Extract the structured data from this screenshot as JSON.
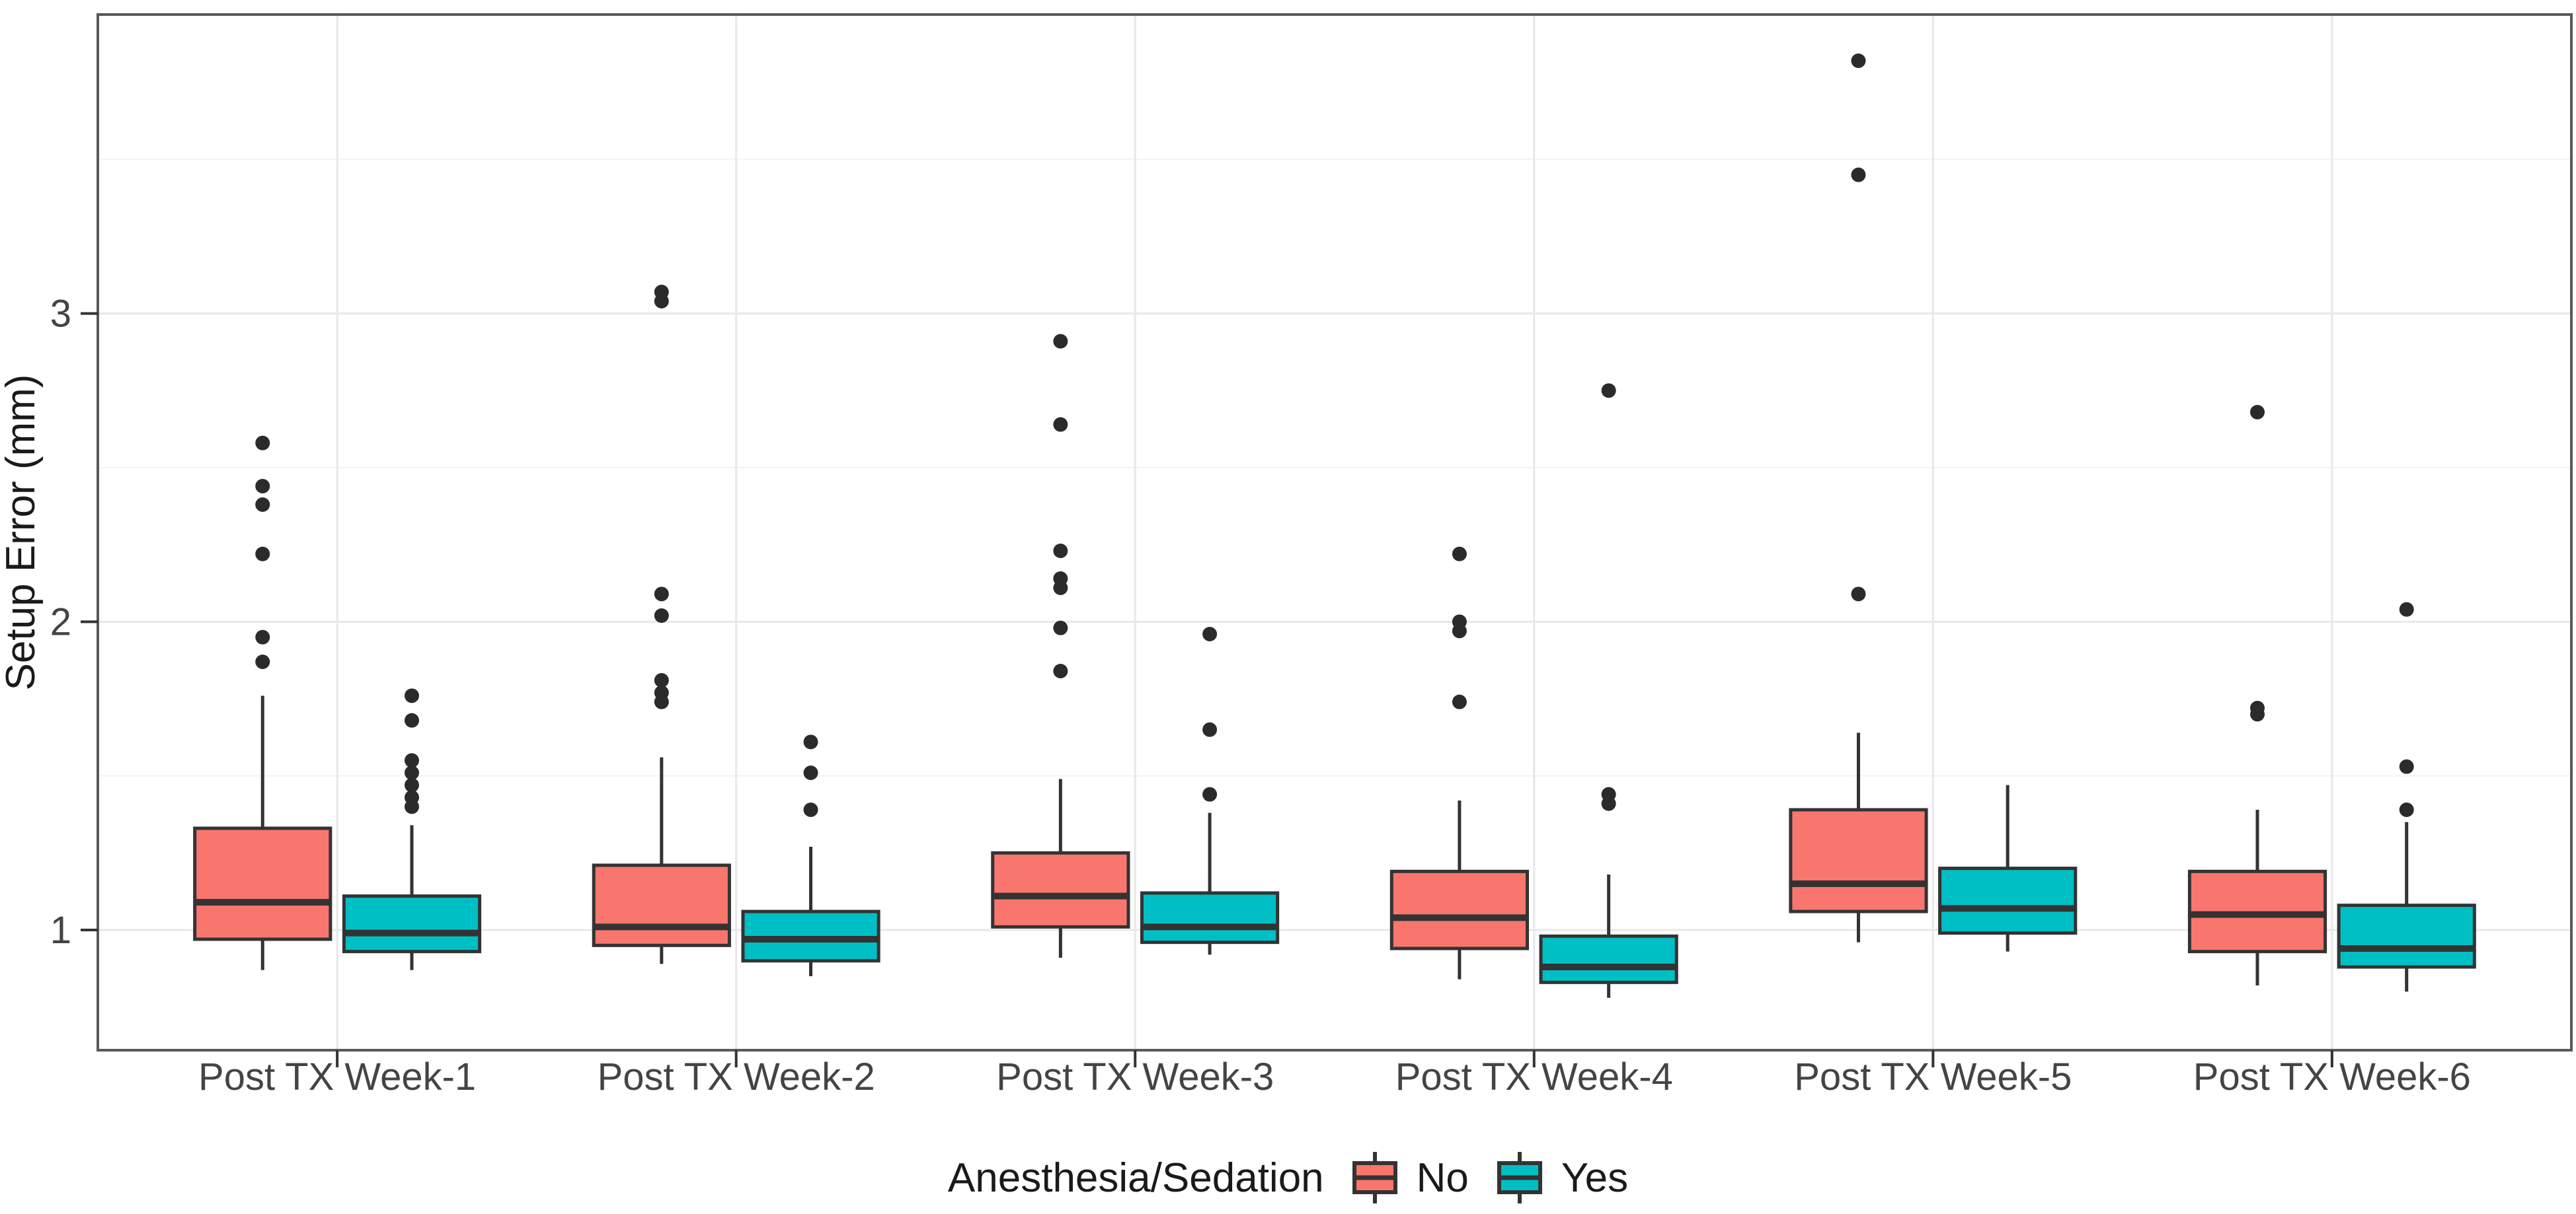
{
  "chart_data": {
    "type": "boxplot",
    "title": "",
    "xlabel": "",
    "ylabel": "Setup Error (mm)",
    "categories": [
      "Post TX Week-1",
      "Post TX Week-2",
      "Post TX Week-3",
      "Post TX Week-4",
      "Post TX Week-5",
      "Post TX Week-6"
    ],
    "y_axis": {
      "ticks": [
        1,
        2,
        3
      ],
      "minor_gridlines": [
        1.5,
        2.5,
        3.5
      ],
      "range": [
        0.61,
        3.97
      ],
      "grid": true
    },
    "legend": {
      "title": "Anesthesia/Sedation",
      "position": "bottom",
      "items": [
        {
          "label": "No",
          "color": "#F8766D"
        },
        {
          "label": "Yes",
          "color": "#00BFC4"
        }
      ]
    },
    "series": [
      {
        "name": "No",
        "color": "#F8766D",
        "boxes": [
          {
            "category": "Post TX Week-1",
            "whisker_low": 0.87,
            "q1": 0.97,
            "median": 1.09,
            "q3": 1.33,
            "whisker_high": 1.76,
            "outliers": [
              1.87,
              1.95,
              2.22,
              2.38,
              2.44,
              2.58
            ]
          },
          {
            "category": "Post TX Week-2",
            "whisker_low": 0.89,
            "q1": 0.95,
            "median": 1.01,
            "q3": 1.21,
            "whisker_high": 1.56,
            "outliers": [
              1.74,
              1.77,
              1.81,
              2.02,
              2.09,
              3.04,
              3.07
            ]
          },
          {
            "category": "Post TX Week-3",
            "whisker_low": 0.91,
            "q1": 1.01,
            "median": 1.11,
            "q3": 1.25,
            "whisker_high": 1.49,
            "outliers": [
              1.84,
              1.98,
              2.11,
              2.14,
              2.23,
              2.64,
              2.91
            ]
          },
          {
            "category": "Post TX Week-4",
            "whisker_low": 0.84,
            "q1": 0.94,
            "median": 1.04,
            "q3": 1.19,
            "whisker_high": 1.42,
            "outliers": [
              1.74,
              1.97,
              2.0,
              2.22
            ]
          },
          {
            "category": "Post TX Week-5",
            "whisker_low": 0.96,
            "q1": 1.06,
            "median": 1.15,
            "q3": 1.39,
            "whisker_high": 1.64,
            "outliers": [
              2.09,
              3.45,
              3.82
            ]
          },
          {
            "category": "Post TX Week-6",
            "whisker_low": 0.82,
            "q1": 0.93,
            "median": 1.05,
            "q3": 1.19,
            "whisker_high": 1.39,
            "outliers": [
              1.7,
              1.72,
              2.68
            ]
          }
        ]
      },
      {
        "name": "Yes",
        "color": "#00BFC4",
        "boxes": [
          {
            "category": "Post TX Week-1",
            "whisker_low": 0.87,
            "q1": 0.93,
            "median": 0.99,
            "q3": 1.11,
            "whisker_high": 1.34,
            "outliers": [
              1.4,
              1.43,
              1.47,
              1.51,
              1.55,
              1.68,
              1.76
            ]
          },
          {
            "category": "Post TX Week-2",
            "whisker_low": 0.85,
            "q1": 0.9,
            "median": 0.97,
            "q3": 1.06,
            "whisker_high": 1.27,
            "outliers": [
              1.39,
              1.51,
              1.61
            ]
          },
          {
            "category": "Post TX Week-3",
            "whisker_low": 0.92,
            "q1": 0.96,
            "median": 1.01,
            "q3": 1.12,
            "whisker_high": 1.38,
            "outliers": [
              1.44,
              1.65,
              1.96
            ]
          },
          {
            "category": "Post TX Week-4",
            "whisker_low": 0.78,
            "q1": 0.83,
            "median": 0.88,
            "q3": 0.98,
            "whisker_high": 1.18,
            "outliers": [
              1.41,
              1.44,
              2.75
            ]
          },
          {
            "category": "Post TX Week-5",
            "whisker_low": 0.93,
            "q1": 0.99,
            "median": 1.07,
            "q3": 1.2,
            "whisker_high": 1.47,
            "outliers": []
          },
          {
            "category": "Post TX Week-6",
            "whisker_low": 0.8,
            "q1": 0.88,
            "median": 0.94,
            "q3": 1.08,
            "whisker_high": 1.35,
            "outliers": [
              1.39,
              1.53,
              2.04
            ]
          }
        ]
      }
    ]
  },
  "style": {
    "box_outline": "#333333",
    "outlier_color": "#2B2B2B",
    "panel_border": "#595959",
    "grid_major": "#E8E8E8",
    "grid_minor": "#F2F2F2",
    "axis_text": "#444444",
    "tick_color": "#333333",
    "background": "#FFFFFF"
  }
}
